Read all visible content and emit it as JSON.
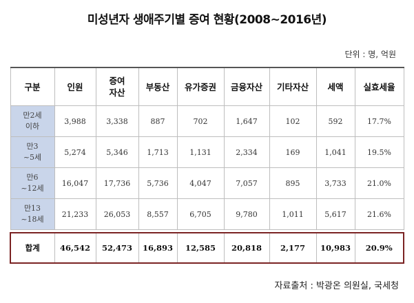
{
  "title": "미성년자 생애주기별 증여 현황(2008~2016년)",
  "unit": "단위 : 명, 억원",
  "source": "자료출처 : 박광온 의원실, 국세청",
  "table": {
    "headers": [
      "구분",
      "인원",
      "증여\n자산",
      "부동산",
      "유가증권",
      "금융자산",
      "기타자산",
      "세액",
      "실효세율"
    ],
    "rows": [
      {
        "label": "만2세\n이하",
        "cells": [
          "3,988",
          "3,338",
          "887",
          "702",
          "1,647",
          "102",
          "592",
          "17.7%"
        ]
      },
      {
        "label": "만3\n~5세",
        "cells": [
          "5,274",
          "5,346",
          "1,713",
          "1,131",
          "2,334",
          "169",
          "1,041",
          "19.5%"
        ]
      },
      {
        "label": "만6\n~12세",
        "cells": [
          "16,047",
          "17,736",
          "5,736",
          "4,047",
          "7,057",
          "895",
          "3,733",
          "21.0%"
        ]
      },
      {
        "label": "만13\n~18세",
        "cells": [
          "21,233",
          "26,053",
          "8,557",
          "6,705",
          "9,780",
          "1,011",
          "5,617",
          "21.6%"
        ]
      }
    ],
    "total": {
      "label": "합계",
      "cells": [
        "46,542",
        "52,473",
        "16,893",
        "12,585",
        "20,818",
        "2,177",
        "10,983",
        "20.9%"
      ]
    }
  },
  "colors": {
    "row_header_bg": "#c9d5ea",
    "total_border": "#7a2222",
    "header_rule": "#555555"
  }
}
